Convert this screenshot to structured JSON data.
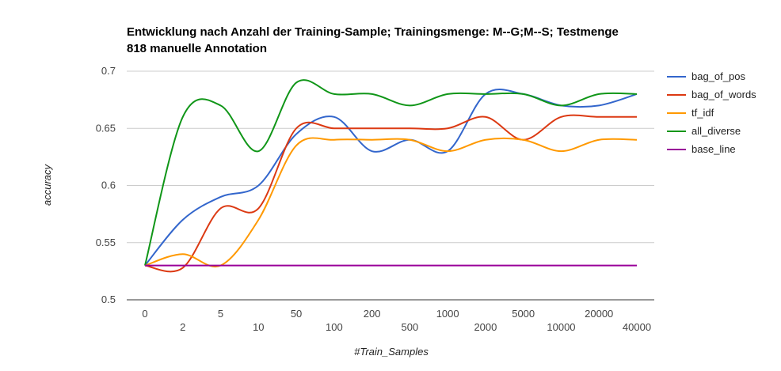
{
  "chart_data": {
    "type": "line",
    "title": "Entwicklung nach Anzahl der Training-Sample; Trainingsmenge: M--G;M--S; Testmenge 818 manuelle Annotation",
    "title_lines": [
      "Entwicklung nach Anzahl der Training-Sample; Trainingsmenge: M--G;M--S; Testmenge",
      "818 manuelle Annotation"
    ],
    "xlabel": "#Train_Samples",
    "ylabel": "accuracy",
    "categories": [
      "0",
      "2",
      "5",
      "10",
      "50",
      "100",
      "200",
      "500",
      "1000",
      "2000",
      "5000",
      "10000",
      "20000",
      "40000"
    ],
    "ylim": [
      0.5,
      0.7
    ],
    "yticks": [
      "0.5",
      "0.55",
      "0.6",
      "0.65",
      "0.7"
    ],
    "grid": true,
    "legend_position": "right",
    "series": [
      {
        "name": "bag_of_pos",
        "color": "#3366cc",
        "values": [
          0.53,
          0.57,
          0.59,
          0.6,
          0.645,
          0.66,
          0.63,
          0.64,
          0.63,
          0.68,
          0.68,
          0.67,
          0.67,
          0.68
        ]
      },
      {
        "name": "bag_of_words",
        "color": "#dc3912",
        "values": [
          0.53,
          0.528,
          0.58,
          0.58,
          0.65,
          0.65,
          0.65,
          0.65,
          0.65,
          0.66,
          0.64,
          0.66,
          0.66,
          0.66
        ]
      },
      {
        "name": "tf_idf",
        "color": "#ff9900",
        "values": [
          0.53,
          0.54,
          0.53,
          0.57,
          0.635,
          0.64,
          0.64,
          0.64,
          0.63,
          0.64,
          0.64,
          0.63,
          0.64,
          0.64
        ]
      },
      {
        "name": "all_diverse",
        "color": "#109618",
        "values": [
          0.53,
          0.66,
          0.67,
          0.63,
          0.69,
          0.68,
          0.68,
          0.67,
          0.68,
          0.68,
          0.68,
          0.67,
          0.68,
          0.68
        ]
      },
      {
        "name": "base_line",
        "color": "#990099",
        "values": [
          0.53,
          0.53,
          0.53,
          0.53,
          0.53,
          0.53,
          0.53,
          0.53,
          0.53,
          0.53,
          0.53,
          0.53,
          0.53,
          0.53
        ]
      }
    ]
  }
}
